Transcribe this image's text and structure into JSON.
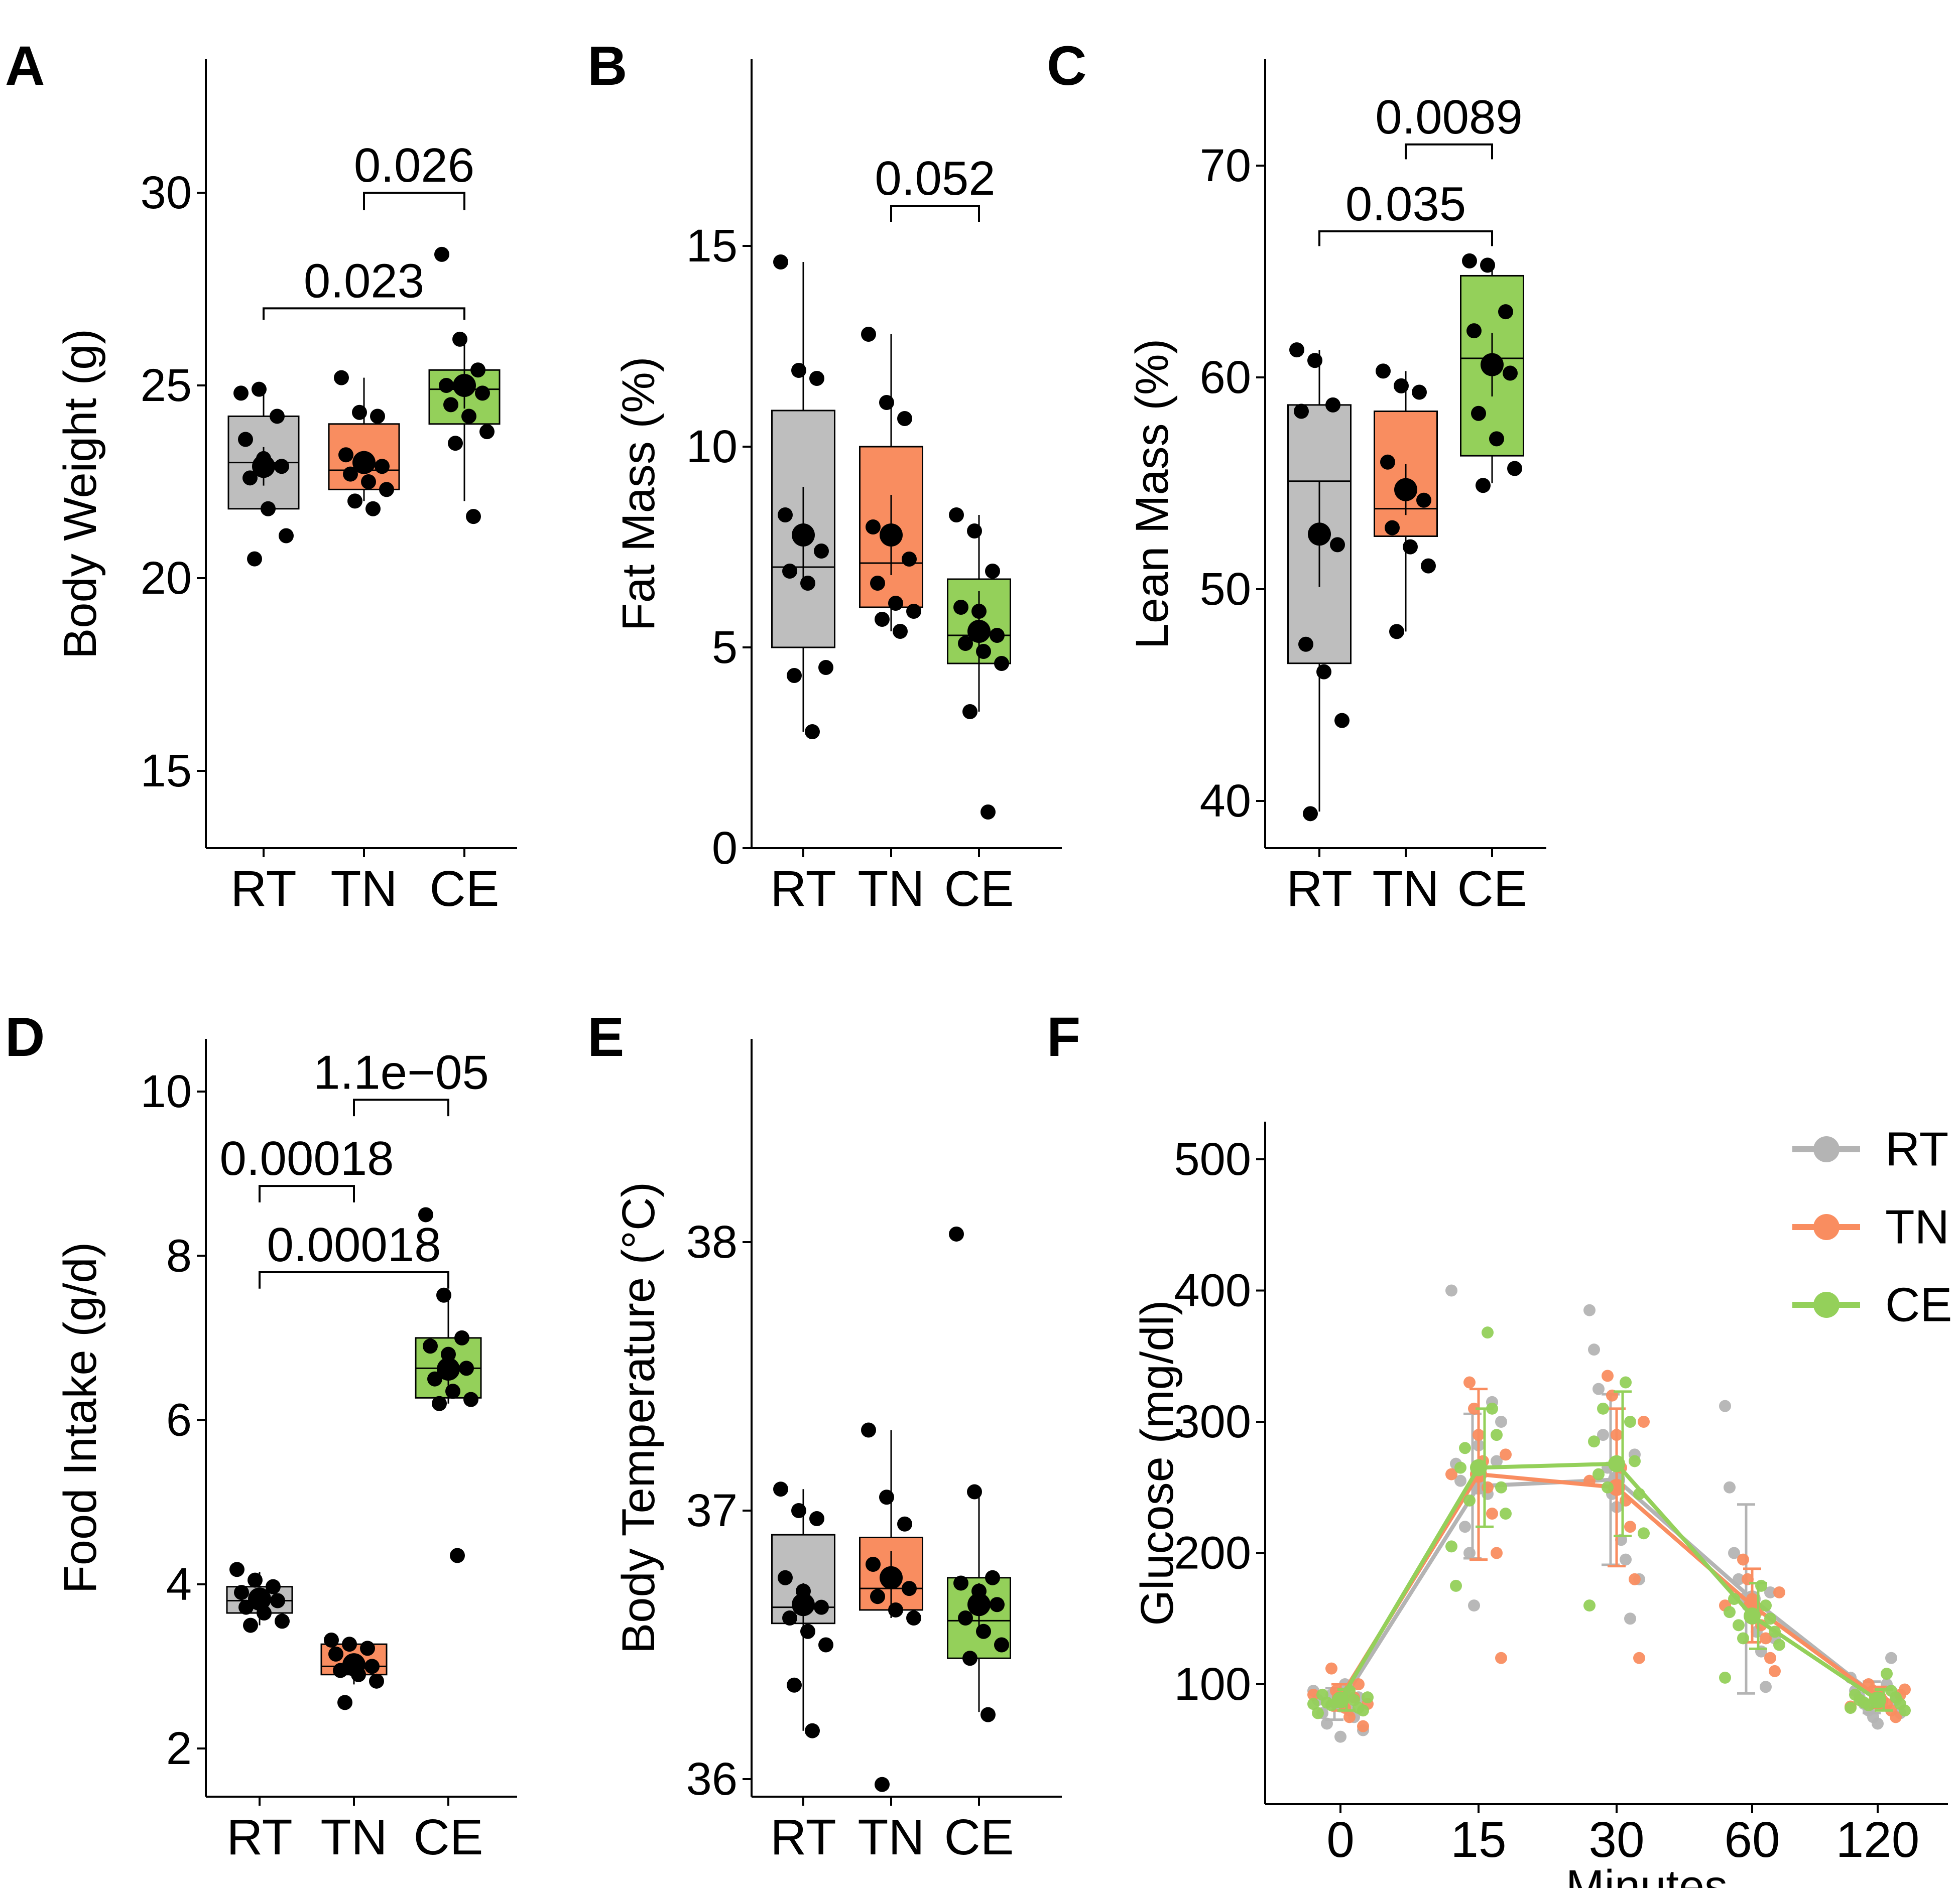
{
  "figure": {
    "panels": [
      "A",
      "B",
      "C",
      "D",
      "E",
      "F"
    ]
  },
  "chart_data": [
    {
      "id": "A",
      "type": "box",
      "panel_label": "A",
      "ylabel": "Body Weight (g)",
      "ylim": [
        13,
        33.2
      ],
      "yticks": [
        15,
        20,
        25,
        30
      ],
      "categories": [
        "RT",
        "TN",
        "CE"
      ],
      "colors": [
        "#bebebe",
        "#f98d60",
        "#94d05a"
      ],
      "boxes": [
        {
          "q1": 21.8,
          "median": 23.0,
          "q3": 24.2,
          "whisker_low": 21.8,
          "whisker_high": 24.8,
          "mean": 22.9,
          "sd": 0.5,
          "points": [
            24.8,
            24.9,
            24.2,
            23.6,
            23.1,
            22.9,
            22.6,
            21.8,
            21.1,
            20.5
          ]
        },
        {
          "q1": 22.3,
          "median": 22.8,
          "q3": 24.0,
          "whisker_low": 22.0,
          "whisker_high": 25.2,
          "mean": 23.0,
          "sd": 0.3,
          "points": [
            25.2,
            24.3,
            24.2,
            23.2,
            23.0,
            22.9,
            22.7,
            22.5,
            22.3,
            22.0,
            21.8
          ]
        },
        {
          "q1": 24.0,
          "median": 24.9,
          "q3": 25.4,
          "whisker_low": 22.0,
          "whisker_high": 26.2,
          "mean": 25.0,
          "sd": 0.6,
          "points": [
            28.4,
            26.2,
            25.4,
            25.0,
            24.9,
            24.8,
            24.5,
            24.2,
            23.8,
            23.5,
            21.6
          ]
        }
      ],
      "comparisons": [
        {
          "from": 0,
          "to": 2,
          "label": "0.023",
          "y": 27.0,
          "tip": 0.3
        },
        {
          "from": 1,
          "to": 2,
          "label": "0.026",
          "y": 30.0,
          "tip": 0.45
        }
      ]
    },
    {
      "id": "B",
      "type": "box",
      "panel_label": "B",
      "ylabel": "Fat Mass (%)",
      "ylim": [
        0,
        19.6
      ],
      "yticks": [
        0,
        5,
        10,
        15
      ],
      "categories": [
        "RT",
        "TN",
        "CE"
      ],
      "colors": [
        "#bebebe",
        "#f98d60",
        "#94d05a"
      ],
      "boxes": [
        {
          "q1": 5.0,
          "median": 7.0,
          "q3": 10.9,
          "whisker_low": 2.9,
          "whisker_high": 14.6,
          "mean": 7.8,
          "sd": 1.2,
          "points": [
            14.6,
            11.9,
            11.7,
            8.3,
            7.9,
            7.4,
            6.9,
            6.6,
            4.5,
            4.3,
            2.9
          ]
        },
        {
          "q1": 6.0,
          "median": 7.1,
          "q3": 10.0,
          "whisker_low": 5.4,
          "whisker_high": 12.8,
          "mean": 7.8,
          "sd": 1.0,
          "points": [
            12.8,
            11.1,
            10.7,
            8.0,
            7.7,
            7.2,
            6.6,
            6.1,
            5.9,
            5.7,
            5.4
          ]
        },
        {
          "q1": 4.6,
          "median": 5.3,
          "q3": 6.7,
          "whisker_low": 3.4,
          "whisker_high": 8.3,
          "mean": 5.4,
          "sd": 1.0,
          "points": [
            8.3,
            7.9,
            6.9,
            6.0,
            5.9,
            5.3,
            5.1,
            4.9,
            4.6,
            3.4,
            0.9
          ]
        }
      ],
      "comparisons": [
        {
          "from": 1,
          "to": 2,
          "label": "0.052",
          "y": 16.0,
          "tip": 0.4
        }
      ]
    },
    {
      "id": "C",
      "type": "box",
      "panel_label": "C",
      "ylabel": "Lean Mass (%)",
      "ylim": [
        38,
        75
      ],
      "yticks": [
        40,
        50,
        60,
        70
      ],
      "categories": [
        "RT",
        "TN",
        "CE"
      ],
      "colors": [
        "#bebebe",
        "#f98d60",
        "#94d05a"
      ],
      "boxes": [
        {
          "q1": 46.5,
          "median": 55.1,
          "q3": 58.7,
          "whisker_low": 39.5,
          "whisker_high": 61.3,
          "mean": 52.6,
          "sd": 2.5,
          "points": [
            61.3,
            60.8,
            58.7,
            58.4,
            52.6,
            52.1,
            47.4,
            46.1,
            43.8,
            39.4
          ]
        },
        {
          "q1": 52.5,
          "median": 53.8,
          "q3": 58.4,
          "whisker_low": 48.0,
          "whisker_high": 60.3,
          "mean": 54.7,
          "sd": 1.2,
          "points": [
            60.3,
            59.6,
            59.3,
            56.0,
            54.7,
            54.2,
            52.9,
            52.0,
            51.1,
            48.0
          ]
        },
        {
          "q1": 56.3,
          "median": 60.9,
          "q3": 64.8,
          "whisker_low": 55.0,
          "whisker_high": 65.5,
          "mean": 60.6,
          "sd": 1.5,
          "points": [
            65.5,
            65.3,
            63.1,
            62.2,
            60.6,
            60.2,
            58.3,
            57.1,
            55.7,
            54.9
          ]
        }
      ],
      "comparisons": [
        {
          "from": 0,
          "to": 2,
          "label": "0.035",
          "y": 66.9,
          "tip": 0.7
        },
        {
          "from": 1,
          "to": 2,
          "label": "0.0089",
          "y": 71.0,
          "tip": 0.7
        }
      ]
    },
    {
      "id": "D",
      "type": "box",
      "panel_label": "D",
      "ylabel": "Food Intake (g/d)",
      "ylim": [
        1.6,
        10.6
      ],
      "yticks": [
        2,
        4,
        6,
        8,
        10
      ],
      "categories": [
        "RT",
        "TN",
        "CE"
      ],
      "colors": [
        "#bebebe",
        "#f98d60",
        "#94d05a"
      ],
      "boxes": [
        {
          "q1": 3.65,
          "median": 3.8,
          "q3": 3.97,
          "whisker_low": 3.5,
          "whisker_high": 4.15,
          "mean": 3.82,
          "sd": 0.08,
          "points": [
            4.18,
            4.05,
            3.97,
            3.9,
            3.85,
            3.8,
            3.72,
            3.65,
            3.55,
            3.5
          ]
        },
        {
          "q1": 2.9,
          "median": 3.0,
          "q3": 3.27,
          "whisker_low": 2.78,
          "whisker_high": 3.32,
          "mean": 3.02,
          "sd": 0.07,
          "points": [
            3.32,
            3.27,
            3.22,
            3.15,
            3.05,
            3.0,
            2.95,
            2.9,
            2.82,
            2.56
          ]
        },
        {
          "q1": 6.27,
          "median": 6.63,
          "q3": 7.0,
          "whisker_low": 6.2,
          "whisker_high": 7.5,
          "mean": 6.62,
          "sd": 0.2,
          "points": [
            8.5,
            7.52,
            7.0,
            6.9,
            6.8,
            6.63,
            6.5,
            6.35,
            6.25,
            6.2,
            4.35
          ]
        }
      ],
      "comparisons": [
        {
          "from": 0,
          "to": 2,
          "label": "0.00018",
          "y": 7.8,
          "tip": 0.2
        },
        {
          "from": 0,
          "to": 1,
          "label": "0.00018",
          "y": 8.85,
          "tip": 0.2
        },
        {
          "from": 1,
          "to": 2,
          "label": "1.1e−05",
          "y": 9.9,
          "tip": 0.2
        }
      ]
    },
    {
      "id": "E",
      "type": "box",
      "panel_label": "E",
      "ylabel": "Body Temperature (°C)",
      "ylim": [
        35.88,
        38.8
      ],
      "yticks": [
        36,
        37,
        38
      ],
      "categories": [
        "RT",
        "TN",
        "CE"
      ],
      "colors": [
        "#bebebe",
        "#f98d60",
        "#94d05a"
      ],
      "boxes": [
        {
          "q1": 36.58,
          "median": 36.64,
          "q3": 36.91,
          "whisker_low": 36.18,
          "whisker_high": 37.08,
          "mean": 36.65,
          "sd": 0.08,
          "points": [
            37.08,
            37.0,
            36.97,
            36.75,
            36.7,
            36.64,
            36.6,
            36.55,
            36.5,
            36.35,
            36.18
          ]
        },
        {
          "q1": 36.63,
          "median": 36.71,
          "q3": 36.9,
          "whisker_low": 36.6,
          "whisker_high": 37.3,
          "mean": 36.75,
          "sd": 0.1,
          "points": [
            37.3,
            37.05,
            36.95,
            36.8,
            36.75,
            36.71,
            36.68,
            36.63,
            36.6,
            35.98
          ]
        },
        {
          "q1": 36.45,
          "median": 36.59,
          "q3": 36.75,
          "whisker_low": 36.25,
          "whisker_high": 37.07,
          "mean": 36.65,
          "sd": 0.08,
          "points": [
            38.03,
            37.07,
            36.75,
            36.73,
            36.7,
            36.65,
            36.6,
            36.55,
            36.5,
            36.45,
            36.24
          ]
        }
      ],
      "comparisons": []
    },
    {
      "id": "F",
      "type": "line",
      "panel_label": "F",
      "ylabel": "Glucose (mg/dl)",
      "xlabel": "Minutes",
      "categories": [
        "0",
        "15",
        "30",
        "60",
        "120"
      ],
      "ylim": [
        45,
        530
      ],
      "yticks": [
        100,
        200,
        300,
        400,
        500
      ],
      "legend_position": "top-right",
      "series": [
        {
          "name": "RT",
          "color": "#b4b4b4",
          "means": [
            85,
            251,
            256,
            165,
            90
          ],
          "sd": [
            12,
            55,
            65,
            72,
            12
          ],
          "points": [
            [
              95,
              88,
              78,
              70,
              92,
              85,
              60,
              100,
              80,
              75,
              90,
              65
            ],
            [
              400,
              268,
              255,
              220,
              200,
              160,
              282,
              250,
              245,
              315,
              270,
              300
            ],
            [
              385,
              355,
              325,
              290,
              265,
              245,
              235,
              210,
              195,
              150,
              275,
              180
            ],
            [
              312,
              250,
              200,
              180,
              165,
              160,
              150,
              140,
              125,
              98,
              170,
              135
            ],
            [
              105,
              95,
              90,
              85,
              80,
              75,
              70,
              85,
              100,
              120,
              88,
              78
            ]
          ]
        },
        {
          "name": "TN",
          "color": "#f98d60",
          "means": [
            90,
            260,
            250,
            160,
            90
          ],
          "sd": [
            10,
            65,
            60,
            28,
            8
          ],
          "points": [
            [
              112,
              95,
              88,
              82,
              75,
              90,
              100,
              68,
              85,
              92
            ],
            [
              330,
              310,
              290,
              270,
              250,
              230,
              200,
              120,
              275,
              260
            ],
            [
              335,
              320,
              290,
              265,
              240,
              220,
              180,
              120,
              300,
              255
            ],
            [
              195,
              180,
              165,
              155,
              145,
              135,
              120,
              110,
              170,
              160
            ],
            [
              100,
              95,
              90,
              88,
              85,
              80,
              75,
              92,
              96,
              83
            ]
          ]
        },
        {
          "name": "CE",
          "color": "#94d05a",
          "means": [
            88,
            265,
            268,
            152,
            88
          ],
          "sd": [
            8,
            45,
            55,
            25,
            8
          ],
          "points": [
            [
              95,
              88,
              82,
              80,
              90,
              85,
              78,
              92,
              86,
              84
            ],
            [
              368,
              310,
              290,
              250,
              230,
              205,
              175,
              265,
              280,
              240
            ],
            [
              330,
              300,
              270,
              245,
              215,
              160,
              285,
              260,
              310,
              250
            ],
            [
              175,
              160,
              150,
              140,
              130,
              105,
              155,
              165,
              145,
              135
            ],
            [
              108,
              95,
              90,
              85,
              80,
              82,
              92,
              88,
              86,
              84
            ]
          ]
        }
      ]
    }
  ]
}
